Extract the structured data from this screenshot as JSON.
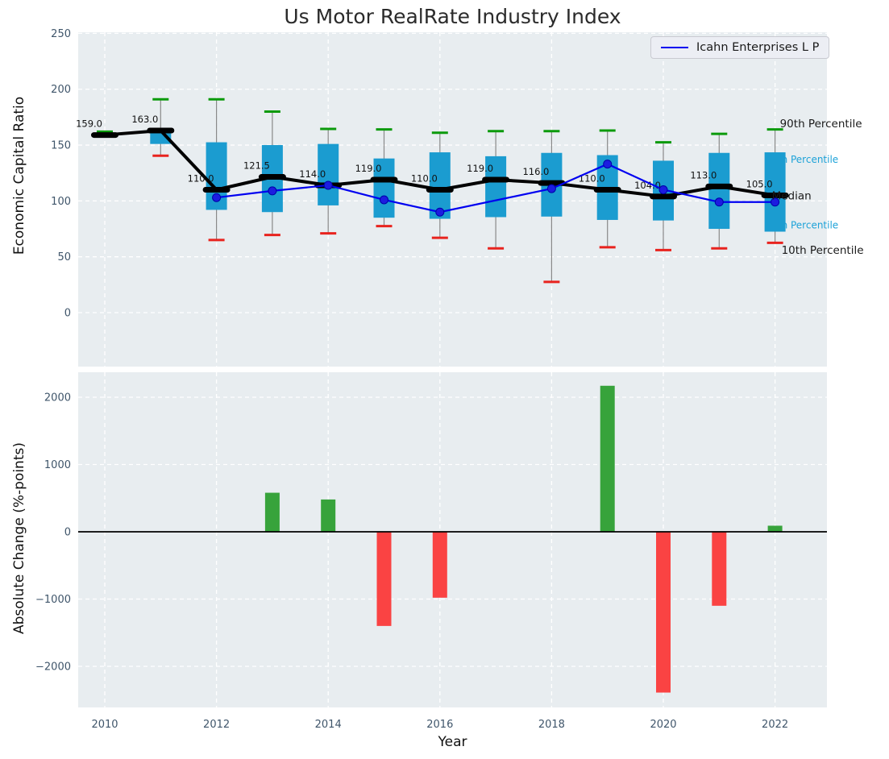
{
  "title": "Us Motor RealRate Industry Index",
  "legend": {
    "label": "Icahn Enterprises L P"
  },
  "colors": {
    "axes_bg": "#e8edf0",
    "grid": "#ffffff",
    "tick_text": "#3f556a",
    "box_fill": "#1b9cd0",
    "whisker": "#898989",
    "cap_high": "#0b9a0b",
    "cap_low": "#e8231e",
    "median": "#000000",
    "icahn_line": "#0000f0",
    "icahn_marker": "#1c1ce0",
    "bar_positive": "#37a33b",
    "bar_negative": "#fa4343",
    "annotation_cyan": "#1da2d8",
    "annotation_black": "#1a1a1a",
    "value_label": "#111111"
  },
  "chart_data": [
    {
      "type": "boxplot+line",
      "title": "Us Motor RealRate Industry Index",
      "ylabel": "Economic Capital Ratio",
      "series_label": "Icahn Enterprises L P",
      "legend_position": "upper right",
      "grid": true,
      "ylim": [
        -48.3,
        251
      ],
      "yticks": [
        0,
        50,
        100,
        150,
        200,
        250
      ],
      "xticks": [
        2010,
        2012,
        2014,
        2016,
        2018,
        2020,
        2022
      ],
      "years": [
        2010,
        2011,
        2012,
        2013,
        2014,
        2015,
        2016,
        2017,
        2018,
        2019,
        2020,
        2021,
        2022
      ],
      "boxes": [
        {
          "year": 2010,
          "median": 159.0,
          "label": "159.0",
          "q1": null,
          "q3": null,
          "whisker_low": null,
          "whisker_high": 162
        },
        {
          "year": 2011,
          "median": 163.0,
          "label": "163.0",
          "q1": 151,
          "q3": 161,
          "whisker_low": 140.5,
          "whisker_high": 191
        },
        {
          "year": 2012,
          "median": 110.0,
          "label": "110.0",
          "q1": 92,
          "q3": 152.5,
          "whisker_low": 65,
          "whisker_high": 191
        },
        {
          "year": 2013,
          "median": 121.5,
          "label": "121.5",
          "q1": 90,
          "q3": 150,
          "whisker_low": 69.5,
          "whisker_high": 180
        },
        {
          "year": 2014,
          "median": 114.0,
          "label": "114.0",
          "q1": 96,
          "q3": 151,
          "whisker_low": 71,
          "whisker_high": 164.5
        },
        {
          "year": 2015,
          "median": 119.0,
          "label": "119.0",
          "q1": 85,
          "q3": 138,
          "whisker_low": 77.5,
          "whisker_high": 164
        },
        {
          "year": 2016,
          "median": 110.0,
          "label": "110.0",
          "q1": 84,
          "q3": 143.5,
          "whisker_low": 67,
          "whisker_high": 161
        },
        {
          "year": 2017,
          "median": 119.0,
          "label": "119.0",
          "q1": 85.5,
          "q3": 140,
          "whisker_low": 57.5,
          "whisker_high": 162.5
        },
        {
          "year": 2018,
          "median": 116.0,
          "label": "116.0",
          "q1": 86,
          "q3": 143,
          "whisker_low": 27.5,
          "whisker_high": 162.5
        },
        {
          "year": 2019,
          "median": 110.0,
          "label": "110.0",
          "q1": 83,
          "q3": 141,
          "whisker_low": 58.5,
          "whisker_high": 163
        },
        {
          "year": 2020,
          "median": 104.0,
          "label": "104.0",
          "q1": 82.5,
          "q3": 136,
          "whisker_low": 56,
          "whisker_high": 152.5
        },
        {
          "year": 2021,
          "median": 113.0,
          "label": "113.0",
          "q1": 75,
          "q3": 143,
          "whisker_low": 57.5,
          "whisker_high": 160
        },
        {
          "year": 2022,
          "median": 105.0,
          "label": "105.0",
          "q1": 72.5,
          "q3": 143.5,
          "whisker_low": 62.5,
          "whisker_high": 164
        }
      ],
      "series": [
        {
          "name": "Median",
          "values": [
            159,
            163,
            110,
            121.5,
            114,
            119,
            110,
            119,
            116,
            110,
            104,
            113,
            105
          ]
        },
        {
          "name": "Icahn Enterprises L P",
          "values": [
            null,
            null,
            103,
            109,
            114,
            101,
            90,
            null,
            111,
            133,
            110,
            99,
            99
          ]
        }
      ],
      "percentile_labels": [
        {
          "text": "90th Percentile",
          "anchor_value": 166,
          "dx": 6,
          "color": "black",
          "size": 13.5,
          "front": true
        },
        {
          "text": "75th Percentile",
          "anchor_value": 134,
          "dx": -12,
          "color": "cyan",
          "size": 12,
          "front": false
        },
        {
          "text": "Median",
          "anchor_value": 101.5,
          "dx": -4,
          "color": "black",
          "size": 13.5,
          "front": true
        },
        {
          "text": "25th Percentile",
          "anchor_value": 75.5,
          "dx": -12,
          "color": "cyan",
          "size": 12,
          "front": false
        },
        {
          "text": "10th Percentile",
          "anchor_value": 52.5,
          "dx": 8,
          "color": "black",
          "size": 13.5,
          "front": true
        }
      ]
    },
    {
      "type": "bar",
      "ylabel": "Absolute Change (%-points)",
      "xlabel": "Year",
      "grid": true,
      "ylim": [
        -2611,
        2371
      ],
      "yticks": [
        -2000,
        -1000,
        0,
        1000,
        2000
      ],
      "xticks": [
        2010,
        2012,
        2014,
        2016,
        2018,
        2020,
        2022
      ],
      "categories": [
        2010,
        2011,
        2012,
        2013,
        2014,
        2015,
        2016,
        2017,
        2018,
        2019,
        2020,
        2021,
        2022
      ],
      "values": [
        0,
        0,
        0,
        580,
        480,
        -1400,
        -980,
        0,
        0,
        2170,
        -2390,
        -1100,
        90
      ]
    }
  ]
}
